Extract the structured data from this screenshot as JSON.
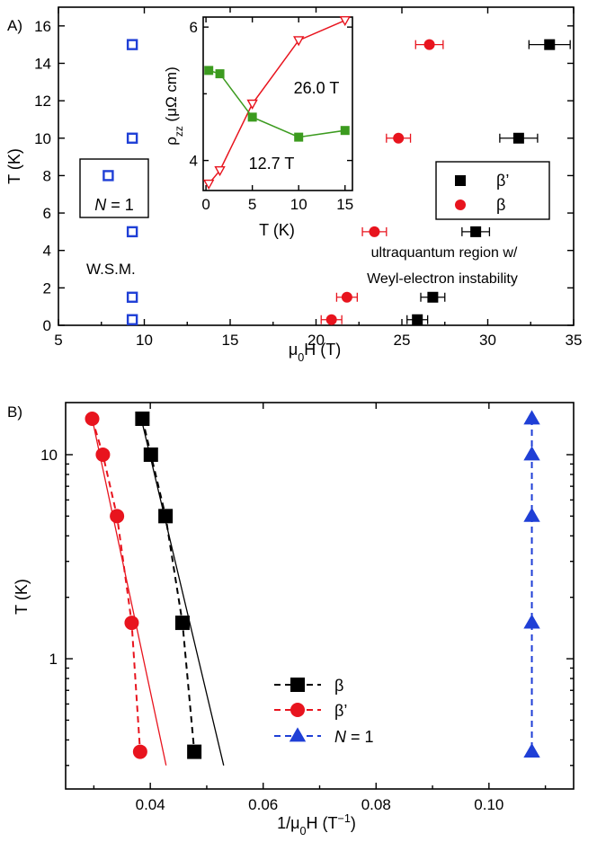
{
  "chart_data": [
    {
      "panel_label": "A)",
      "type": "scatter",
      "xlabel": "μ0H (T)",
      "ylabel": "T (K)",
      "xlim": [
        5,
        35
      ],
      "ylim": [
        0,
        17
      ],
      "xticks": [
        "5",
        "10",
        "15",
        "20",
        "25",
        "30",
        "35"
      ],
      "yticks": [
        "0",
        "2",
        "4",
        "6",
        "8",
        "10",
        "12",
        "14",
        "16"
      ],
      "series": [
        {
          "name": "β’",
          "marker": "square",
          "color": "#000000",
          "x": [
            25.9,
            26.8,
            29.3,
            31.8,
            33.6
          ],
          "y": [
            0.3,
            1.5,
            5,
            10,
            15
          ],
          "xerr": [
            0.6,
            0.7,
            0.8,
            1.1,
            1.2
          ]
        },
        {
          "name": "β",
          "marker": "circle",
          "color": "#e8141e",
          "x": [
            20.9,
            21.8,
            23.4,
            24.8,
            26.6
          ],
          "y": [
            0.3,
            1.5,
            5,
            10,
            15
          ],
          "xerr": [
            0.6,
            0.6,
            0.7,
            0.7,
            0.8
          ]
        },
        {
          "name": "N = 1",
          "marker": "open-square",
          "color": "#1f3fd6",
          "x": [
            9.3,
            9.3,
            9.3,
            9.3,
            9.3
          ],
          "y": [
            0.3,
            1.5,
            5,
            10,
            15
          ]
        }
      ],
      "open_marker_outside": {
        "x": 7.9,
        "y": 8
      },
      "legend": [
        "β’",
        "β"
      ],
      "annotations": {
        "n1_box": "N = 1",
        "wsm": "W.S.M.",
        "region_line1": "ultraquantum region w/",
        "region_line2": "Weyl-electron instability"
      },
      "inset": {
        "type": "line",
        "xlabel": "T (K)",
        "ylabel": "ρzz (μΩ cm)",
        "xlim": [
          -0.3,
          15.8
        ],
        "ylim": [
          3.55,
          6.15
        ],
        "xticks": [
          "0",
          "5",
          "10",
          "15"
        ],
        "yticks": [
          "4",
          "6"
        ],
        "series": [
          {
            "name": "26.0 T",
            "color": "#e8141e",
            "marker": "open-triangle-down",
            "x": [
              0.3,
              1.5,
              5,
              10,
              15
            ],
            "y": [
              3.65,
              3.85,
              4.85,
              5.8,
              6.1
            ]
          },
          {
            "name": "12.7 T",
            "color": "#3c9b1f",
            "marker": "square",
            "x": [
              0.3,
              1.5,
              5,
              10,
              15
            ],
            "y": [
              5.35,
              5.3,
              4.65,
              4.35,
              4.45
            ]
          }
        ]
      }
    },
    {
      "panel_label": "B)",
      "type": "scatter",
      "xlabel": "1/μ0H (T⁻¹)",
      "ylabel": "T (K)",
      "xscale": "linear",
      "yscale": "log",
      "xlim": [
        0.025,
        0.115
      ],
      "ylim": [
        0.23,
        18
      ],
      "xticks": [
        "0.04",
        "0.06",
        "0.08",
        "0.10"
      ],
      "yticks": [
        "1",
        "10"
      ],
      "series": [
        {
          "name": "β",
          "marker": "square",
          "color": "#000000",
          "line": "dashed",
          "x": [
            0.0386,
            0.0401,
            0.0427,
            0.0457,
            0.0478
          ],
          "y": [
            15,
            10,
            5,
            1.5,
            0.35
          ]
        },
        {
          "name": "β’",
          "marker": "circle",
          "color": "#e8141e",
          "line": "dashed",
          "x": [
            0.0297,
            0.0316,
            0.0341,
            0.0367,
            0.0382
          ],
          "y": [
            15,
            10,
            5,
            1.5,
            0.35
          ]
        },
        {
          "name": "N = 1",
          "marker": "triangle-up",
          "color": "#1f3fd6",
          "line": "dashed",
          "x": [
            0.1076,
            0.1076,
            0.1076,
            0.1076,
            0.1076
          ],
          "y": [
            15,
            10,
            5,
            1.5,
            0.35
          ]
        }
      ],
      "fit_lines": [
        {
          "color": "#000000",
          "x": [
            0.0384,
            0.053
          ],
          "y": [
            15,
            0.3
          ]
        },
        {
          "color": "#e8141e",
          "x": [
            0.0297,
            0.0428
          ],
          "y": [
            15,
            0.3
          ]
        }
      ],
      "legend": [
        "β",
        "β’",
        "N = 1"
      ]
    }
  ]
}
